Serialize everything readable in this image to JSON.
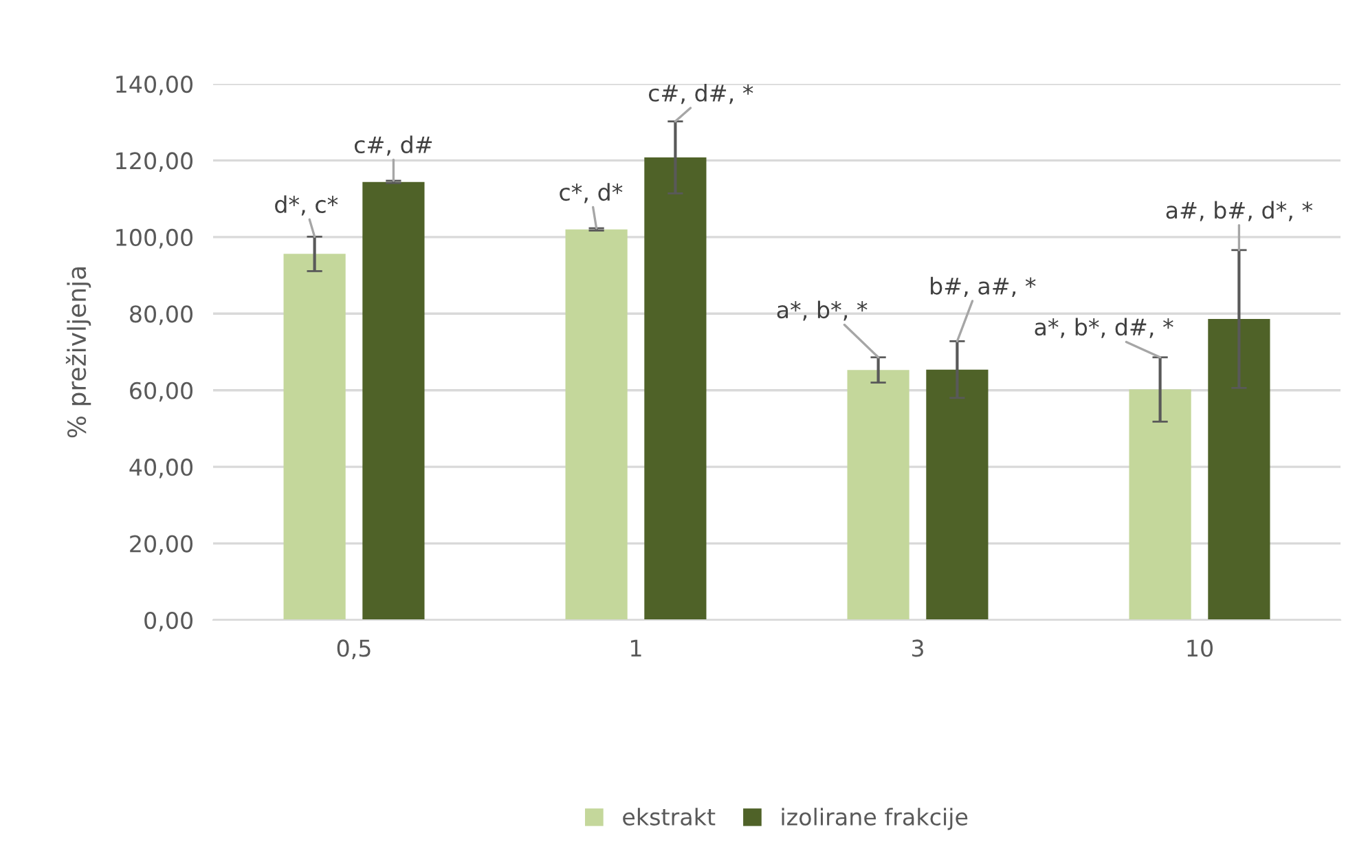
{
  "chart_data": {
    "type": "bar",
    "ylabel": "% preživljenja",
    "categories": [
      "0,5",
      "1",
      "3",
      "10"
    ],
    "series": [
      {
        "name": "ekstrakt",
        "color": "#c4d79b",
        "values": [
          95.6,
          102.0,
          65.3,
          60.2
        ],
        "errors": [
          4.5,
          0.3,
          3.3,
          8.4
        ]
      },
      {
        "name": "izolirane frakcije",
        "color": "#4f6228",
        "values": [
          114.4,
          120.8,
          65.4,
          78.6
        ],
        "errors": [
          0.3,
          9.4,
          7.4,
          18.0
        ]
      }
    ],
    "ylim": [
      0,
      140
    ],
    "yticks": [
      {
        "value": 0,
        "label": "0,00"
      },
      {
        "value": 20,
        "label": "20,00"
      },
      {
        "value": 40,
        "label": "40,00"
      },
      {
        "value": 60,
        "label": "60,00"
      },
      {
        "value": 80,
        "label": "80,00"
      },
      {
        "value": 100,
        "label": "100,00"
      },
      {
        "value": 120,
        "label": "120,00"
      },
      {
        "value": 140,
        "label": "140,00"
      }
    ],
    "grid": "y",
    "legend": "bottom",
    "annotations": [
      "d*, c*",
      "c#, d#",
      "c*, d*",
      "c#, d#, *",
      "a*, b*, *",
      "b#, a#, *",
      "a*, b*, d#, *",
      "a#, b#, d*, *"
    ]
  }
}
